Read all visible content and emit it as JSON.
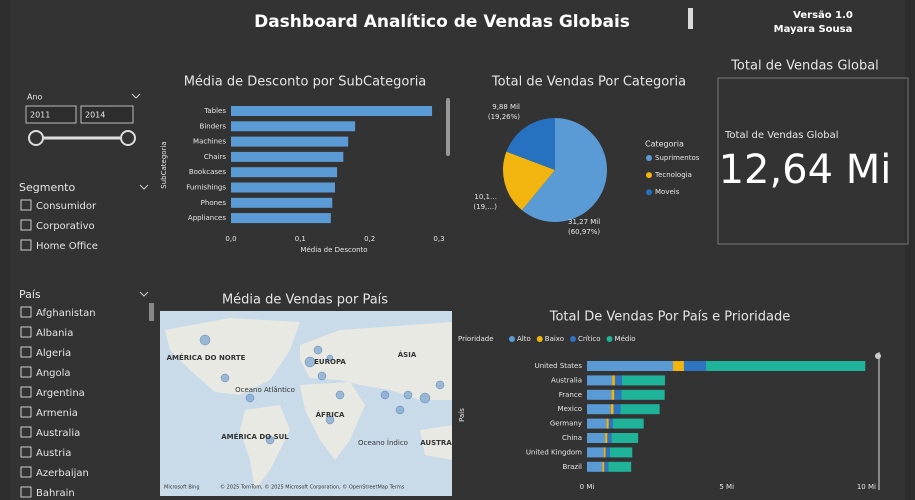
{
  "header": {
    "title": "Dashboard Analítico de Vendas Globais",
    "version": "Versão 1.0",
    "author": "Mayara Sousa"
  },
  "slicers": {
    "ano": {
      "label": "Ano",
      "from": "2011",
      "to": "2014"
    },
    "segmento": {
      "label": "Segmento",
      "options": [
        "Consumidor",
        "Corporativo",
        "Home Office"
      ]
    },
    "pais": {
      "label": "País",
      "options": [
        "Afghanistan",
        "Albania",
        "Algeria",
        "Angola",
        "Argentina",
        "Armenia",
        "Australia",
        "Austria",
        "Azerbaijan",
        "Bahrain"
      ]
    }
  },
  "card": {
    "title": "Total de Vendas Global",
    "label": "Total de Vendas Global",
    "value": "12,64 Mi"
  },
  "map": {
    "title": "Média de Vendas por País",
    "labels": [
      "AMÉRICA DO NORTE",
      "EUROPA",
      "ÁSIA",
      "Oceano Atlântico",
      "ÁFRICA",
      "AMÉRICA DO SUL",
      "Oceano Índico",
      "AUSTRA"
    ],
    "brand": "Microsoft Bing",
    "attribution": "© 2025 TomTom, © 2025 Microsoft Corporation, © OpenStreetMap Terms"
  },
  "chart_data": [
    {
      "type": "bar",
      "horizontal": true,
      "title": "Média de Desconto por SubCategoria",
      "x_label": "Média de Desconto",
      "y_label": "SubCategoria",
      "categories": [
        "Tables",
        "Binders",
        "Machines",
        "Chairs",
        "Bookcases",
        "Furnishings",
        "Phones",
        "Appliances"
      ],
      "values": [
        0.29,
        0.179,
        0.169,
        0.162,
        0.153,
        0.15,
        0.146,
        0.144
      ],
      "color": "#5b9bd5",
      "xlim": [
        0,
        0.3
      ],
      "xticks": [
        {
          "value": 0,
          "label": "0,0"
        },
        {
          "value": 0.1,
          "label": "0,1"
        },
        {
          "value": 0.2,
          "label": "0,2"
        },
        {
          "value": 0.3,
          "label": "0,3"
        }
      ]
    },
    {
      "type": "pie",
      "title": "Total de Vendas Por Categoria",
      "legend_title": "Categoria",
      "categories": [
        "Suprimentos",
        "Tecnologia",
        "Moveis"
      ],
      "values": [
        60.97,
        19.77,
        19.26
      ],
      "value_labels": [
        "(60,97%)",
        "(19,…)",
        "(19,26%)"
      ],
      "amount_labels": [
        "31,27 Mil",
        "10,1…",
        "9,88 Mil"
      ],
      "colors": [
        "#5b9bd5",
        "#f2b50f",
        "#2672c0"
      ]
    },
    {
      "type": "bar",
      "horizontal": true,
      "stacked": true,
      "title": "Total De Vendas Por País e Prioridade",
      "legend_title": "Prioridade",
      "y_label": "País",
      "categories": [
        "United States",
        "Australia",
        "France",
        "Mexico",
        "Germany",
        "China",
        "United Kingdom",
        "Brazil"
      ],
      "series": [
        {
          "name": "Alto",
          "color": "#5b9bd5",
          "values": [
            3.08,
            0.9,
            0.88,
            0.85,
            0.7,
            0.65,
            0.6,
            0.55
          ]
        },
        {
          "name": "Baixo",
          "color": "#f2b50f",
          "values": [
            0.39,
            0.1,
            0.1,
            0.1,
            0.08,
            0.08,
            0.07,
            0.07
          ]
        },
        {
          "name": "Crítico",
          "color": "#2e74c0",
          "values": [
            0.79,
            0.25,
            0.25,
            0.25,
            0.15,
            0.15,
            0.15,
            0.14
          ]
        },
        {
          "name": "Médio",
          "color": "#1fb39a",
          "values": [
            5.7,
            1.54,
            1.55,
            1.4,
            1.1,
            0.95,
            0.8,
            0.82
          ]
        }
      ],
      "xlim": [
        0,
        10.2
      ],
      "xticks": [
        {
          "value": 0,
          "label": "0 Mi"
        },
        {
          "value": 5,
          "label": "5 Mi"
        },
        {
          "value": 10,
          "label": "10 Mi"
        }
      ]
    }
  ]
}
